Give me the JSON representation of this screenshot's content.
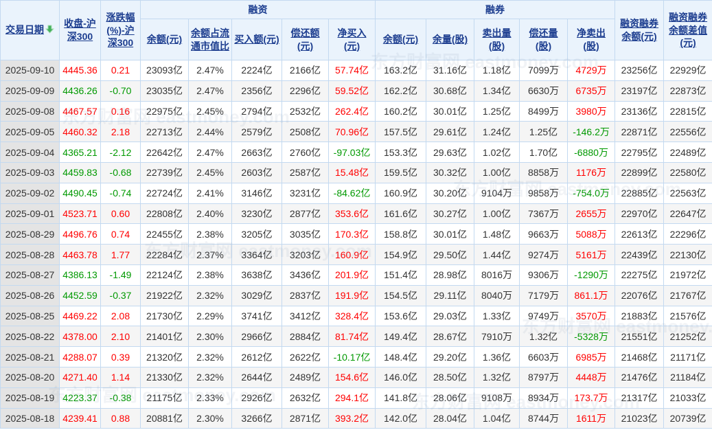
{
  "watermark": "东方财富网 eastmoney.com",
  "colors": {
    "up": "#ff0000",
    "down": "#009900",
    "header_text": "#1c3d8f",
    "header_bg": "#eaf3fc",
    "grid_border": "#c3d9f0",
    "date_col_bg": "#e4e4e4",
    "stripe_bg": "#f5f5f5",
    "sort_arrow_green": "#44b05c"
  },
  "table": {
    "groups": {
      "financing": "融资",
      "securities_lending": "融券"
    },
    "columns": [
      {
        "key": "date",
        "label": "交易日期"
      },
      {
        "key": "close",
        "label": "收盘-沪深300"
      },
      {
        "key": "chg",
        "label": "涨跌幅(%)-沪深300"
      },
      {
        "key": "fin_balance",
        "label": "余额(元)"
      },
      {
        "key": "fin_ratio",
        "label": "余额占流通市值比"
      },
      {
        "key": "fin_buy",
        "label": "买入额(元)"
      },
      {
        "key": "fin_repay",
        "label": "偿还额(元)"
      },
      {
        "key": "fin_netbuy",
        "label": "净买入(元)"
      },
      {
        "key": "sec_balance",
        "label": "余额(元)"
      },
      {
        "key": "sec_volume",
        "label": "余量(股)"
      },
      {
        "key": "sec_sell",
        "label": "卖出量(股)"
      },
      {
        "key": "sec_repay",
        "label": "偿还量(股)"
      },
      {
        "key": "sec_netsell",
        "label": "净卖出(股)"
      },
      {
        "key": "total_balance",
        "label": "融资融券余额(元)"
      },
      {
        "key": "balance_diff",
        "label": "融资融券余额差值(元)"
      }
    ],
    "rows": [
      {
        "date": "2025-09-10",
        "close": "4445.36",
        "chg": "0.21",
        "dir": "up",
        "fin_balance": "23093亿",
        "fin_ratio": "2.47%",
        "fin_buy": "2224亿",
        "fin_repay": "2166亿",
        "fin_netbuy": "57.74亿",
        "fin_netbuy_dir": "up",
        "sec_balance": "163.2亿",
        "sec_volume": "31.16亿",
        "sec_sell": "1.18亿",
        "sec_repay": "7099万",
        "sec_netsell": "4729万",
        "sec_netsell_dir": "up",
        "total_balance": "23256亿",
        "balance_diff": "22929亿"
      },
      {
        "date": "2025-09-09",
        "close": "4436.26",
        "chg": "-0.70",
        "dir": "down",
        "fin_balance": "23035亿",
        "fin_ratio": "2.47%",
        "fin_buy": "2356亿",
        "fin_repay": "2296亿",
        "fin_netbuy": "59.52亿",
        "fin_netbuy_dir": "up",
        "sec_balance": "162.2亿",
        "sec_volume": "30.68亿",
        "sec_sell": "1.34亿",
        "sec_repay": "6630万",
        "sec_netsell": "6735万",
        "sec_netsell_dir": "up",
        "total_balance": "23197亿",
        "balance_diff": "22873亿"
      },
      {
        "date": "2025-09-08",
        "close": "4467.57",
        "chg": "0.16",
        "dir": "up",
        "fin_balance": "22975亿",
        "fin_ratio": "2.45%",
        "fin_buy": "2794亿",
        "fin_repay": "2532亿",
        "fin_netbuy": "262.4亿",
        "fin_netbuy_dir": "up",
        "sec_balance": "160.2亿",
        "sec_volume": "30.01亿",
        "sec_sell": "1.25亿",
        "sec_repay": "8499万",
        "sec_netsell": "3980万",
        "sec_netsell_dir": "up",
        "total_balance": "23136亿",
        "balance_diff": "22815亿"
      },
      {
        "date": "2025-09-05",
        "close": "4460.32",
        "chg": "2.18",
        "dir": "up",
        "fin_balance": "22713亿",
        "fin_ratio": "2.44%",
        "fin_buy": "2579亿",
        "fin_repay": "2508亿",
        "fin_netbuy": "70.96亿",
        "fin_netbuy_dir": "up",
        "sec_balance": "157.5亿",
        "sec_volume": "29.61亿",
        "sec_sell": "1.24亿",
        "sec_repay": "1.25亿",
        "sec_netsell": "-146.2万",
        "sec_netsell_dir": "down",
        "total_balance": "22871亿",
        "balance_diff": "22556亿"
      },
      {
        "date": "2025-09-04",
        "close": "4365.21",
        "chg": "-2.12",
        "dir": "down",
        "fin_balance": "22642亿",
        "fin_ratio": "2.47%",
        "fin_buy": "2663亿",
        "fin_repay": "2760亿",
        "fin_netbuy": "-97.03亿",
        "fin_netbuy_dir": "down",
        "sec_balance": "153.3亿",
        "sec_volume": "29.63亿",
        "sec_sell": "1.02亿",
        "sec_repay": "1.70亿",
        "sec_netsell": "-6880万",
        "sec_netsell_dir": "down",
        "total_balance": "22795亿",
        "balance_diff": "22489亿"
      },
      {
        "date": "2025-09-03",
        "close": "4459.83",
        "chg": "-0.68",
        "dir": "down",
        "fin_balance": "22739亿",
        "fin_ratio": "2.45%",
        "fin_buy": "2603亿",
        "fin_repay": "2587亿",
        "fin_netbuy": "15.48亿",
        "fin_netbuy_dir": "up",
        "sec_balance": "159.5亿",
        "sec_volume": "30.32亿",
        "sec_sell": "1.00亿",
        "sec_repay": "8858万",
        "sec_netsell": "1176万",
        "sec_netsell_dir": "up",
        "total_balance": "22899亿",
        "balance_diff": "22580亿"
      },
      {
        "date": "2025-09-02",
        "close": "4490.45",
        "chg": "-0.74",
        "dir": "down",
        "fin_balance": "22724亿",
        "fin_ratio": "2.41%",
        "fin_buy": "3146亿",
        "fin_repay": "3231亿",
        "fin_netbuy": "-84.62亿",
        "fin_netbuy_dir": "down",
        "sec_balance": "160.9亿",
        "sec_volume": "30.20亿",
        "sec_sell": "9104万",
        "sec_repay": "9858万",
        "sec_netsell": "-754.0万",
        "sec_netsell_dir": "down",
        "total_balance": "22885亿",
        "balance_diff": "22563亿"
      },
      {
        "date": "2025-09-01",
        "close": "4523.71",
        "chg": "0.60",
        "dir": "up",
        "fin_balance": "22808亿",
        "fin_ratio": "2.40%",
        "fin_buy": "3230亿",
        "fin_repay": "2877亿",
        "fin_netbuy": "353.6亿",
        "fin_netbuy_dir": "up",
        "sec_balance": "161.6亿",
        "sec_volume": "30.27亿",
        "sec_sell": "1.00亿",
        "sec_repay": "7367万",
        "sec_netsell": "2655万",
        "sec_netsell_dir": "up",
        "total_balance": "22970亿",
        "balance_diff": "22647亿"
      },
      {
        "date": "2025-08-29",
        "close": "4496.76",
        "chg": "0.74",
        "dir": "up",
        "fin_balance": "22455亿",
        "fin_ratio": "2.38%",
        "fin_buy": "3205亿",
        "fin_repay": "3035亿",
        "fin_netbuy": "170.3亿",
        "fin_netbuy_dir": "up",
        "sec_balance": "158.8亿",
        "sec_volume": "30.01亿",
        "sec_sell": "1.48亿",
        "sec_repay": "9663万",
        "sec_netsell": "5088万",
        "sec_netsell_dir": "up",
        "total_balance": "22613亿",
        "balance_diff": "22296亿"
      },
      {
        "date": "2025-08-28",
        "close": "4463.78",
        "chg": "1.77",
        "dir": "up",
        "fin_balance": "22284亿",
        "fin_ratio": "2.37%",
        "fin_buy": "3364亿",
        "fin_repay": "3203亿",
        "fin_netbuy": "160.9亿",
        "fin_netbuy_dir": "up",
        "sec_balance": "154.9亿",
        "sec_volume": "29.50亿",
        "sec_sell": "1.44亿",
        "sec_repay": "9274万",
        "sec_netsell": "5161万",
        "sec_netsell_dir": "up",
        "total_balance": "22439亿",
        "balance_diff": "22130亿"
      },
      {
        "date": "2025-08-27",
        "close": "4386.13",
        "chg": "-1.49",
        "dir": "down",
        "fin_balance": "22124亿",
        "fin_ratio": "2.38%",
        "fin_buy": "3638亿",
        "fin_repay": "3436亿",
        "fin_netbuy": "201.9亿",
        "fin_netbuy_dir": "up",
        "sec_balance": "151.4亿",
        "sec_volume": "28.98亿",
        "sec_sell": "8016万",
        "sec_repay": "9306万",
        "sec_netsell": "-1290万",
        "sec_netsell_dir": "down",
        "total_balance": "22275亿",
        "balance_diff": "21972亿"
      },
      {
        "date": "2025-08-26",
        "close": "4452.59",
        "chg": "-0.37",
        "dir": "down",
        "fin_balance": "21922亿",
        "fin_ratio": "2.32%",
        "fin_buy": "3029亿",
        "fin_repay": "2837亿",
        "fin_netbuy": "191.9亿",
        "fin_netbuy_dir": "up",
        "sec_balance": "154.5亿",
        "sec_volume": "29.11亿",
        "sec_sell": "8040万",
        "sec_repay": "7179万",
        "sec_netsell": "861.1万",
        "sec_netsell_dir": "up",
        "total_balance": "22076亿",
        "balance_diff": "21767亿"
      },
      {
        "date": "2025-08-25",
        "close": "4469.22",
        "chg": "2.08",
        "dir": "up",
        "fin_balance": "21730亿",
        "fin_ratio": "2.29%",
        "fin_buy": "3741亿",
        "fin_repay": "3412亿",
        "fin_netbuy": "328.4亿",
        "fin_netbuy_dir": "up",
        "sec_balance": "153.6亿",
        "sec_volume": "29.03亿",
        "sec_sell": "1.33亿",
        "sec_repay": "9749万",
        "sec_netsell": "3570万",
        "sec_netsell_dir": "up",
        "total_balance": "21883亿",
        "balance_diff": "21576亿"
      },
      {
        "date": "2025-08-22",
        "close": "4378.00",
        "chg": "2.10",
        "dir": "up",
        "fin_balance": "21401亿",
        "fin_ratio": "2.30%",
        "fin_buy": "2966亿",
        "fin_repay": "2884亿",
        "fin_netbuy": "81.74亿",
        "fin_netbuy_dir": "up",
        "sec_balance": "149.4亿",
        "sec_volume": "28.67亿",
        "sec_sell": "7910万",
        "sec_repay": "1.32亿",
        "sec_netsell": "-5328万",
        "sec_netsell_dir": "down",
        "total_balance": "21551亿",
        "balance_diff": "21252亿"
      },
      {
        "date": "2025-08-21",
        "close": "4288.07",
        "chg": "0.39",
        "dir": "up",
        "fin_balance": "21320亿",
        "fin_ratio": "2.32%",
        "fin_buy": "2612亿",
        "fin_repay": "2622亿",
        "fin_netbuy": "-10.17亿",
        "fin_netbuy_dir": "down",
        "sec_balance": "148.4亿",
        "sec_volume": "29.20亿",
        "sec_sell": "1.36亿",
        "sec_repay": "6603万",
        "sec_netsell": "6985万",
        "sec_netsell_dir": "up",
        "total_balance": "21468亿",
        "balance_diff": "21171亿"
      },
      {
        "date": "2025-08-20",
        "close": "4271.40",
        "chg": "1.14",
        "dir": "up",
        "fin_balance": "21330亿",
        "fin_ratio": "2.32%",
        "fin_buy": "2644亿",
        "fin_repay": "2489亿",
        "fin_netbuy": "154.6亿",
        "fin_netbuy_dir": "up",
        "sec_balance": "146.0亿",
        "sec_volume": "28.50亿",
        "sec_sell": "1.32亿",
        "sec_repay": "8797万",
        "sec_netsell": "4448万",
        "sec_netsell_dir": "up",
        "total_balance": "21476亿",
        "balance_diff": "21184亿"
      },
      {
        "date": "2025-08-19",
        "close": "4223.37",
        "chg": "-0.38",
        "dir": "down",
        "fin_balance": "21175亿",
        "fin_ratio": "2.33%",
        "fin_buy": "2926亿",
        "fin_repay": "2632亿",
        "fin_netbuy": "294.1亿",
        "fin_netbuy_dir": "up",
        "sec_balance": "141.8亿",
        "sec_volume": "28.06亿",
        "sec_sell": "9108万",
        "sec_repay": "8934万",
        "sec_netsell": "173.7万",
        "sec_netsell_dir": "up",
        "total_balance": "21317亿",
        "balance_diff": "21033亿"
      },
      {
        "date": "2025-08-18",
        "close": "4239.41",
        "chg": "0.88",
        "dir": "up",
        "fin_balance": "20881亿",
        "fin_ratio": "2.30%",
        "fin_buy": "3266亿",
        "fin_repay": "2871亿",
        "fin_netbuy": "393.2亿",
        "fin_netbuy_dir": "up",
        "sec_balance": "142.0亿",
        "sec_volume": "28.04亿",
        "sec_sell": "1.04亿",
        "sec_repay": "8744万",
        "sec_netsell": "1611万",
        "sec_netsell_dir": "up",
        "total_balance": "21023亿",
        "balance_diff": "20739亿"
      }
    ]
  }
}
